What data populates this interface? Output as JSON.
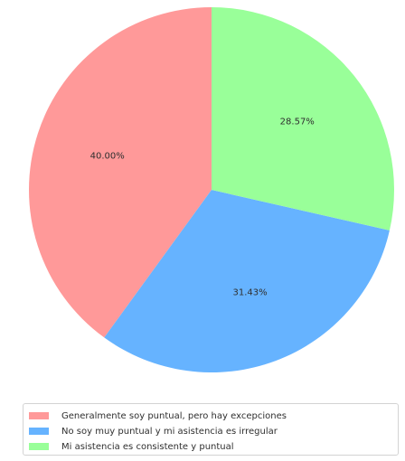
{
  "chart_data": {
    "type": "pie",
    "title": "",
    "labels": [
      "Generalmente soy puntual, pero hay excepciones",
      "No soy muy puntual y mi asistencia es irregular",
      "Mi asistencia es consistente y puntual"
    ],
    "values": [
      40.0,
      31.43,
      28.57
    ],
    "value_labels": [
      "40.00%",
      "31.43%",
      "28.57%"
    ],
    "colors": [
      "#ff9999",
      "#66b3ff",
      "#99ff99"
    ],
    "legend_position": "bottom"
  }
}
